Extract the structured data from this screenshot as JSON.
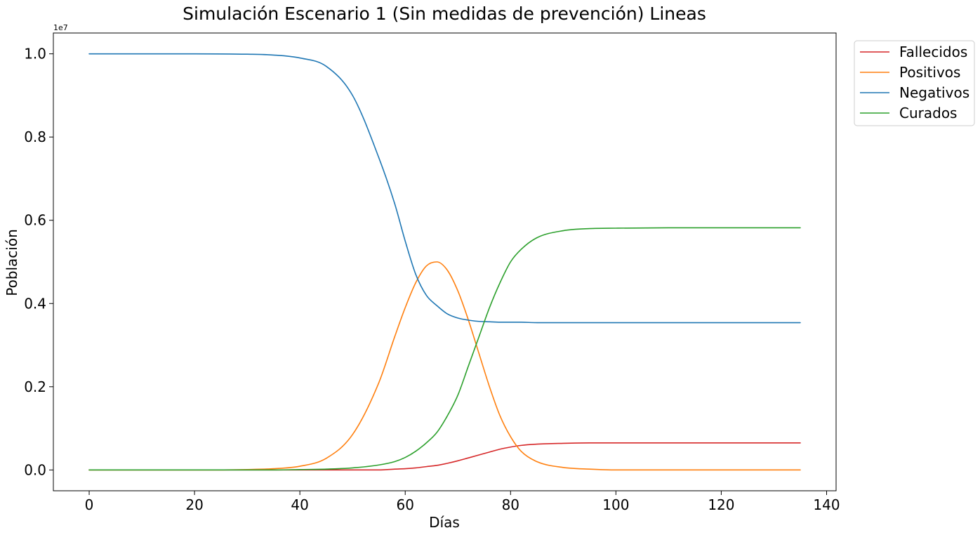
{
  "chart_data": {
    "type": "line",
    "title": "Simulación Escenario 1 (Sin medidas de prevención) Lineas",
    "xlabel": "Días",
    "ylabel": "Población",
    "y_offset_label": "1e7",
    "xlim": [
      -6.8,
      141.8
    ],
    "ylim": [
      -0.05,
      1.05
    ],
    "y_scale_multiplier": 10000000,
    "x_ticks": [
      0,
      20,
      40,
      60,
      80,
      100,
      120,
      140
    ],
    "x_tick_labels": [
      "0",
      "20",
      "40",
      "60",
      "80",
      "100",
      "120",
      "140"
    ],
    "y_ticks": [
      0.0,
      0.2,
      0.4,
      0.6,
      0.8,
      1.0
    ],
    "y_tick_labels": [
      "0.0",
      "0.2",
      "0.4",
      "0.6",
      "0.8",
      "1.0"
    ],
    "grid": false,
    "legend_position": "outside-top-right",
    "x": [
      0,
      10,
      20,
      30,
      35,
      40,
      45,
      50,
      55,
      58,
      60,
      62,
      64,
      66,
      68,
      70,
      72,
      74,
      76,
      78,
      80,
      82,
      85,
      90,
      95,
      100,
      110,
      120,
      135
    ],
    "series": [
      {
        "name": "Fallecidos",
        "color": "#d62728",
        "values": [
          0.0,
          0.0,
          0.0,
          0.0,
          0.0,
          0.0,
          0.0,
          0.0,
          0.0,
          0.002,
          0.003,
          0.005,
          0.008,
          0.011,
          0.016,
          0.022,
          0.029,
          0.036,
          0.043,
          0.05,
          0.055,
          0.059,
          0.062,
          0.064,
          0.065,
          0.065,
          0.065,
          0.065,
          0.065
        ]
      },
      {
        "name": "Positivos",
        "color": "#ff7f0e",
        "values": [
          0.0,
          0.0,
          0.0,
          0.001,
          0.003,
          0.009,
          0.028,
          0.085,
          0.21,
          0.32,
          0.39,
          0.45,
          0.49,
          0.5,
          0.48,
          0.43,
          0.36,
          0.28,
          0.2,
          0.13,
          0.08,
          0.045,
          0.02,
          0.006,
          0.002,
          0.0,
          0.0,
          0.0,
          0.0
        ]
      },
      {
        "name": "Negativos",
        "color": "#1f77b4",
        "values": [
          1.0,
          1.0,
          1.0,
          0.999,
          0.997,
          0.99,
          0.97,
          0.9,
          0.75,
          0.64,
          0.55,
          0.47,
          0.42,
          0.395,
          0.375,
          0.365,
          0.36,
          0.357,
          0.356,
          0.355,
          0.355,
          0.355,
          0.354,
          0.354,
          0.354,
          0.354,
          0.354,
          0.354,
          0.354
        ]
      },
      {
        "name": "Curados",
        "color": "#2ca02c",
        "values": [
          0.0,
          0.0,
          0.0,
          0.0,
          0.0,
          0.001,
          0.002,
          0.005,
          0.012,
          0.02,
          0.03,
          0.045,
          0.065,
          0.09,
          0.13,
          0.18,
          0.25,
          0.32,
          0.39,
          0.45,
          0.5,
          0.53,
          0.558,
          0.575,
          0.58,
          0.581,
          0.582,
          0.582,
          0.582
        ]
      }
    ]
  }
}
